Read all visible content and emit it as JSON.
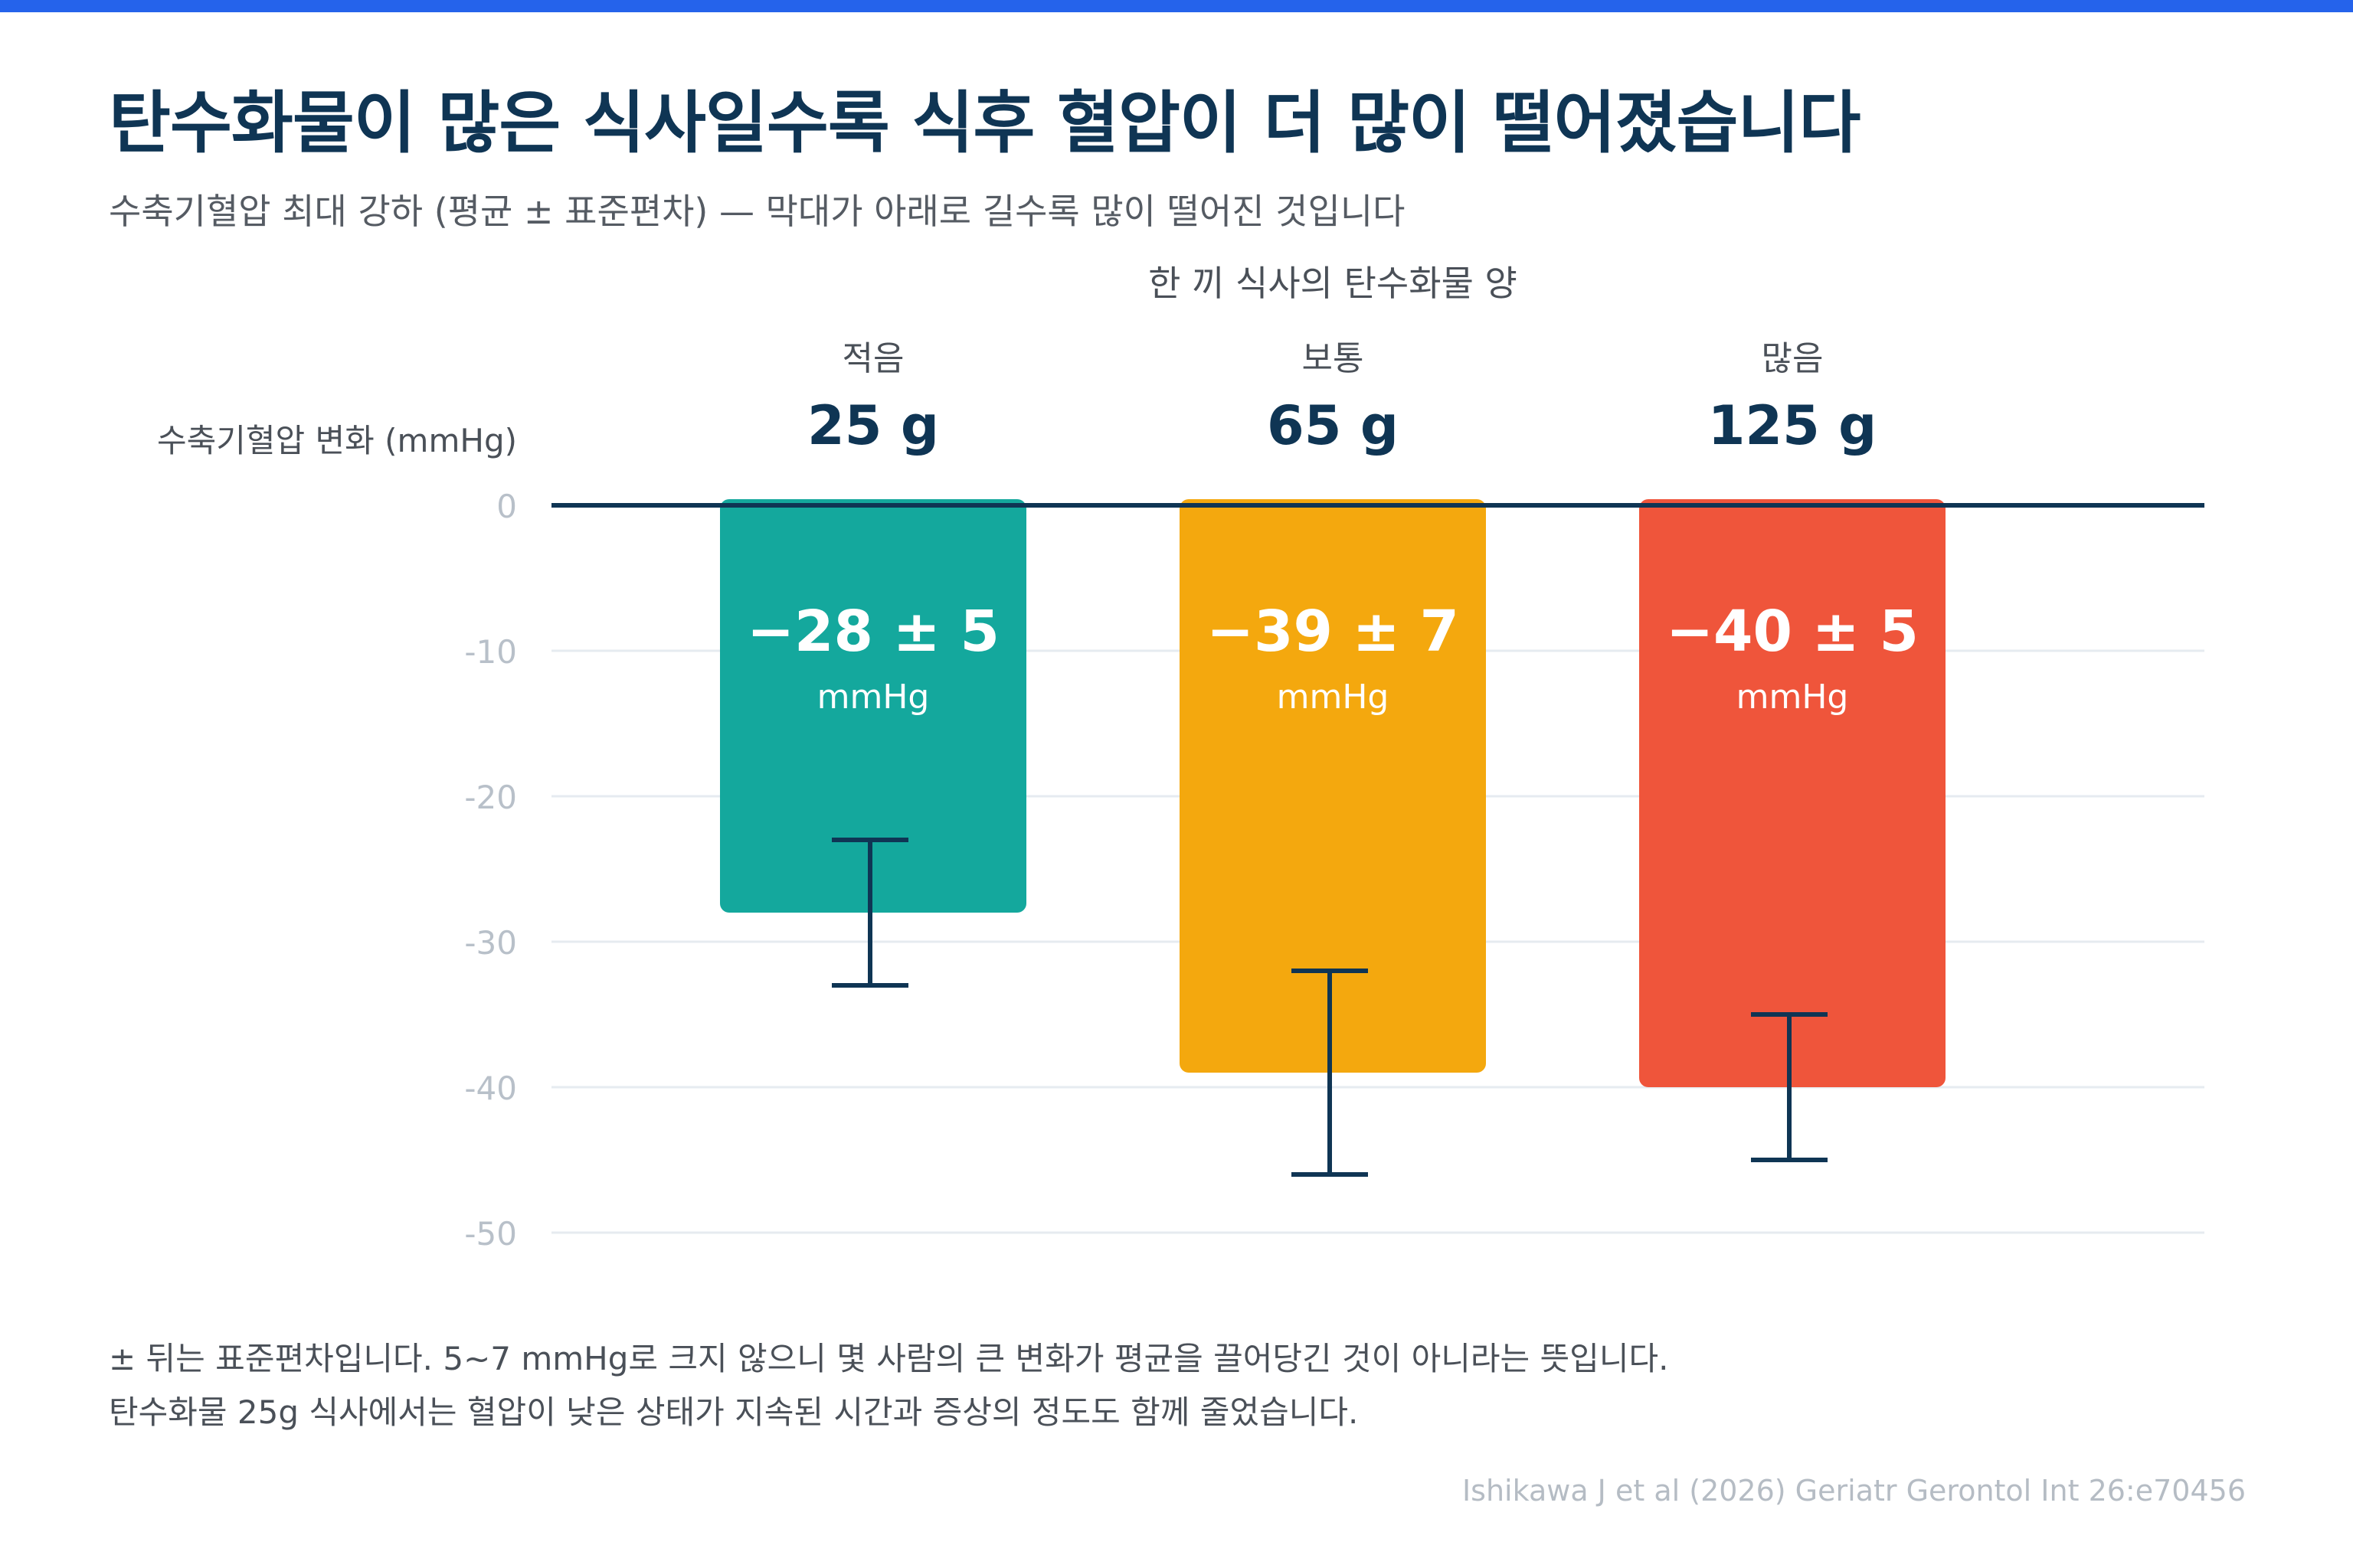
{
  "title": "탄수화물이 많은 식사일수록 식후 혈압이 더 많이 떨어졌습니다",
  "subtitle": "수축기혈압 최대 강하 (평균 ± 표준편차) — 막대가 아래로 길수록 많이 떨어진 것입니다",
  "chart_data": {
    "type": "bar",
    "top_axis_title": "한 끼 식사의 탄수화물 양",
    "ylabel": "수축기혈압 변화 (mmHg)",
    "ylim": [
      -50,
      0
    ],
    "yticks": [
      0,
      -10,
      -20,
      -30,
      -40,
      -50
    ],
    "ytick_labels": [
      "0",
      "-10",
      "-20",
      "-30",
      "-40",
      "-50"
    ],
    "grid": true,
    "categories": [
      {
        "level": "적음",
        "amount": "25 g",
        "mean": -28,
        "sd": 5,
        "label": "−28 ± 5",
        "unit": "mmHg",
        "color": "#14a89d"
      },
      {
        "level": "보통",
        "amount": "65 g",
        "mean": -39,
        "sd": 7,
        "label": "−39 ± 7",
        "unit": "mmHg",
        "color": "#f4a80e"
      },
      {
        "level": "많음",
        "amount": "125 g",
        "mean": -40,
        "sd": 5,
        "label": "−40 ± 5",
        "unit": "mmHg",
        "color": "#ef553b"
      }
    ]
  },
  "footnote": {
    "line1": "± 뒤는 표준편차입니다. 5~7 mmHg로 크지 않으니 몇 사람의 큰 변화가 평균을 끌어당긴 것이 아니라는 뜻입니다.",
    "line2": "탄수화물 25g 식사에서는 혈압이 낮은 상태가 지속된 시간과 증상의 정도도 함께 줄었습니다."
  },
  "source": "Ishikawa J et al (2026) Geriatr Gerontol Int 26:e70456",
  "colors": {
    "accent_bar": "#2563eb",
    "title": "#0f3554",
    "axis_line": "#0f3554",
    "grid": "#e6ebf0",
    "tick": "#b8c0c9",
    "error_bar": "#0f3554"
  }
}
